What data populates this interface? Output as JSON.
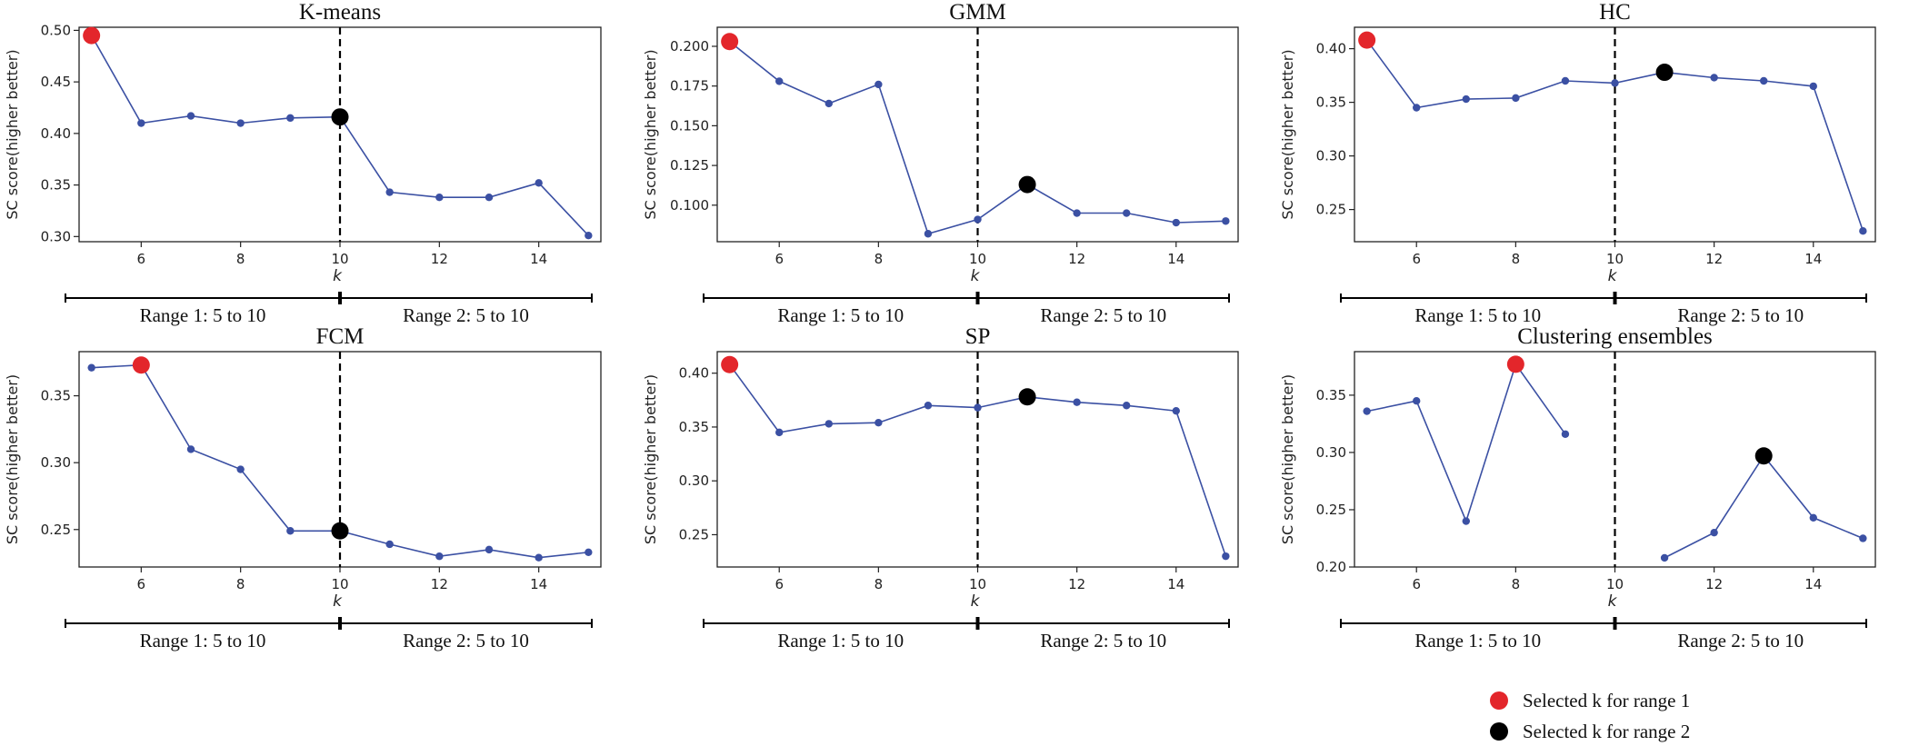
{
  "colors": {
    "line": "#3b50a3",
    "range1_marker": "#e3262b",
    "range2_marker": "#000000",
    "axis": "#222222"
  },
  "legend": {
    "range1": "Selected k for range 1",
    "range2": "Selected k for range 2"
  },
  "chart_data": [
    {
      "type": "line",
      "title": "K-means",
      "xlabel": "k",
      "ylabel": "SC score(higher better)",
      "x": [
        5,
        6,
        7,
        8,
        9,
        10,
        11,
        12,
        13,
        14,
        15
      ],
      "values": [
        0.495,
        0.41,
        0.417,
        0.41,
        0.415,
        0.416,
        0.343,
        0.338,
        0.338,
        0.352,
        0.301
      ],
      "xlim": [
        4.75,
        15.25
      ],
      "ylim": [
        0.295,
        0.503
      ],
      "xticks": [
        "6",
        "8",
        "10",
        "12",
        "14"
      ],
      "yticks": [
        "0.30",
        "0.35",
        "0.40",
        "0.45",
        "0.50"
      ],
      "divider_x": 10,
      "selected_range1": {
        "x": 5,
        "y": 0.495
      },
      "selected_range2": {
        "x": 10,
        "y": 0.416
      },
      "range1_label": "Range 1: 5 to 10",
      "range2_label": "Range 2: 5 to 10"
    },
    {
      "type": "line",
      "title": "GMM",
      "xlabel": "k",
      "ylabel": "SC score(higher better)",
      "x": [
        5,
        6,
        7,
        8,
        9,
        10,
        11,
        12,
        13,
        14,
        15
      ],
      "values": [
        0.203,
        0.178,
        0.164,
        0.176,
        0.082,
        0.091,
        0.113,
        0.095,
        0.095,
        0.089,
        0.09
      ],
      "xlim": [
        4.75,
        15.25
      ],
      "ylim": [
        0.077,
        0.212
      ],
      "xticks": [
        "6",
        "8",
        "10",
        "12",
        "14"
      ],
      "yticks": [
        "0.100",
        "0.125",
        "0.150",
        "0.175",
        "0.200"
      ],
      "divider_x": 10,
      "selected_range1": {
        "x": 5,
        "y": 0.203
      },
      "selected_range2": {
        "x": 11,
        "y": 0.113
      },
      "range1_label": "Range 1: 5 to 10",
      "range2_label": "Range 2: 5 to 10"
    },
    {
      "type": "line",
      "title": "HC",
      "xlabel": "k",
      "ylabel": "SC score(higher better)",
      "x": [
        5,
        6,
        7,
        8,
        9,
        10,
        11,
        12,
        13,
        14,
        15
      ],
      "values": [
        0.408,
        0.345,
        0.353,
        0.354,
        0.37,
        0.368,
        0.378,
        0.373,
        0.37,
        0.365,
        0.23
      ],
      "xlim": [
        4.75,
        15.25
      ],
      "ylim": [
        0.22,
        0.42
      ],
      "xticks": [
        "6",
        "8",
        "10",
        "12",
        "14"
      ],
      "yticks": [
        "0.25",
        "0.30",
        "0.35",
        "0.40"
      ],
      "divider_x": 10,
      "selected_range1": {
        "x": 5,
        "y": 0.408
      },
      "selected_range2": {
        "x": 11,
        "y": 0.378
      },
      "range1_label": "Range 1: 5 to 10",
      "range2_label": "Range 2: 5 to 10"
    },
    {
      "type": "line",
      "title": "FCM",
      "xlabel": "k",
      "ylabel": "SC score(higher better)",
      "x": [
        5,
        6,
        7,
        8,
        9,
        10,
        11,
        12,
        13,
        14,
        15
      ],
      "values": [
        0.371,
        0.373,
        0.31,
        0.295,
        0.249,
        0.249,
        0.239,
        0.23,
        0.235,
        0.229,
        0.233
      ],
      "xlim": [
        4.75,
        15.25
      ],
      "ylim": [
        0.222,
        0.383
      ],
      "xticks": [
        "6",
        "8",
        "10",
        "12",
        "14"
      ],
      "yticks": [
        "0.25",
        "0.30",
        "0.35"
      ],
      "divider_x": 10,
      "selected_range1": {
        "x": 6,
        "y": 0.373
      },
      "selected_range2": {
        "x": 10,
        "y": 0.249
      },
      "range1_label": "Range 1: 5 to 10",
      "range2_label": "Range 2: 5 to 10"
    },
    {
      "type": "line",
      "title": "SP",
      "xlabel": "k",
      "ylabel": "SC score(higher better)",
      "x": [
        5,
        6,
        7,
        8,
        9,
        10,
        11,
        12,
        13,
        14,
        15
      ],
      "values": [
        0.408,
        0.345,
        0.353,
        0.354,
        0.37,
        0.368,
        0.378,
        0.373,
        0.37,
        0.365,
        0.23
      ],
      "xlim": [
        4.75,
        15.25
      ],
      "ylim": [
        0.22,
        0.42
      ],
      "xticks": [
        "6",
        "8",
        "10",
        "12",
        "14"
      ],
      "yticks": [
        "0.25",
        "0.30",
        "0.35",
        "0.40"
      ],
      "divider_x": 10,
      "selected_range1": {
        "x": 5,
        "y": 0.408
      },
      "selected_range2": {
        "x": 11,
        "y": 0.378
      },
      "range1_label": "Range 1: 5 to 10",
      "range2_label": "Range 2: 5 to 10"
    },
    {
      "type": "line",
      "title": "Clustering ensembles",
      "xlabel": "k",
      "ylabel": "SC score(higher better)",
      "segments": [
        {
          "x": [
            5,
            6,
            7,
            8,
            9
          ],
          "values": [
            0.336,
            0.345,
            0.24,
            0.377,
            0.316
          ]
        },
        {
          "x": [
            11,
            12,
            13,
            14,
            15
          ],
          "values": [
            0.208,
            0.23,
            0.297,
            0.243,
            0.225
          ]
        }
      ],
      "xlim": [
        4.75,
        15.25
      ],
      "ylim": [
        0.2,
        0.388
      ],
      "xticks": [
        "6",
        "8",
        "10",
        "12",
        "14"
      ],
      "yticks": [
        "0.20",
        "0.25",
        "0.30",
        "0.35"
      ],
      "divider_x": 10,
      "selected_range1": {
        "x": 8,
        "y": 0.377
      },
      "selected_range2": {
        "x": 13,
        "y": 0.297
      },
      "range1_label": "Range 1: 5 to 10",
      "range2_label": "Range 2: 5 to 10"
    }
  ]
}
